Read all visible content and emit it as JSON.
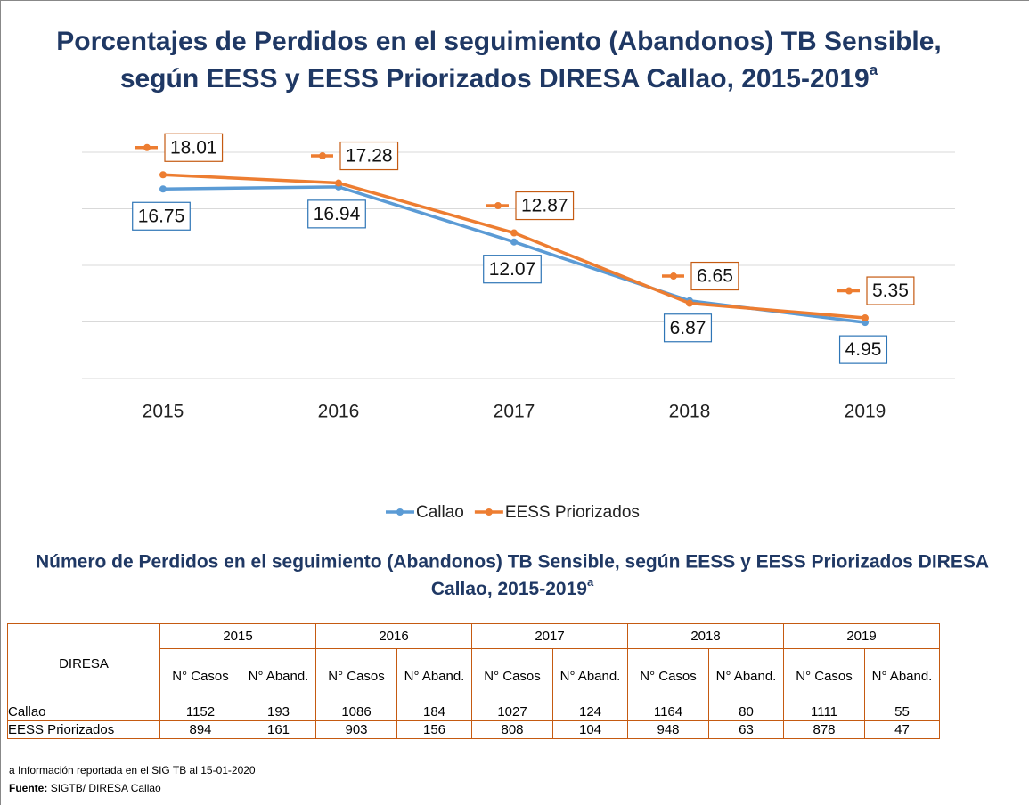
{
  "chart_data": {
    "type": "line",
    "title": [
      "Porcentajes de Perdidos en el seguimiento (Abandonos) TB Sensible,",
      "según EESS y EESS Priorizados DIRESA Callao, 2015-2019"
    ],
    "title_note": "a",
    "categories": [
      "2015",
      "2016",
      "2017",
      "2018",
      "2019"
    ],
    "series": [
      {
        "name": "Callao",
        "color": "#5b9bd5",
        "values": [
          16.75,
          16.94,
          12.07,
          6.87,
          4.95
        ]
      },
      {
        "name": "EESS Priorizados",
        "color": "#ed7d31",
        "values": [
          18.01,
          17.28,
          12.87,
          6.65,
          5.35
        ]
      }
    ],
    "ylim": [
      0,
      20
    ],
    "yticks": [
      0,
      5,
      10,
      15,
      20
    ],
    "grid": true,
    "legend": "bottom"
  },
  "table": {
    "title": [
      "Número de Perdidos en el seguimiento (Abandonos) TB Sensible, según EESS y EESS Priorizados DIRESA",
      "Callao, 2015-2019"
    ],
    "title_note": "a",
    "corner": "DIRESA",
    "years": [
      "2015",
      "2016",
      "2017",
      "2018",
      "2019"
    ],
    "subheaders": [
      "N° Casos",
      "N° Aband."
    ],
    "rows": [
      [
        "Callao",
        1152,
        193,
        1086,
        184,
        1027,
        124,
        1164,
        80,
        1111,
        55
      ],
      [
        "EESS Priorizados",
        894,
        161,
        903,
        156,
        808,
        104,
        948,
        63,
        878,
        47
      ]
    ]
  },
  "footnote": "a Información reportada en el SIG TB al 15-01-2020",
  "source": {
    "label": "Fuente:",
    "text": "SIGTB/ DIRESA Callao"
  }
}
